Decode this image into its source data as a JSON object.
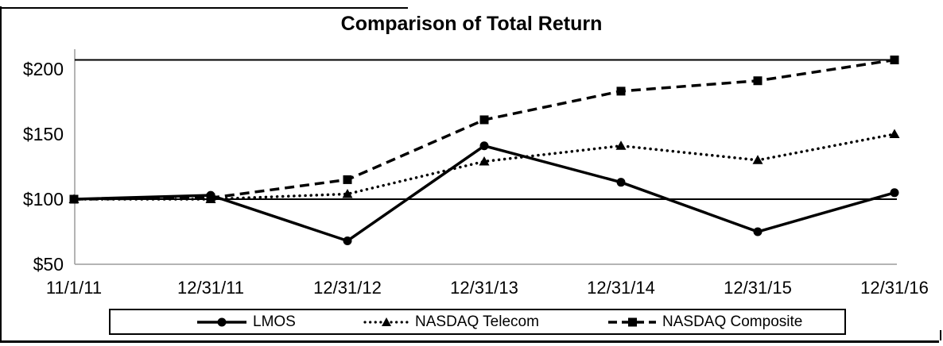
{
  "figure": {
    "title": "Comparison of Total Return"
  },
  "chart_data": {
    "type": "line",
    "title": "Comparison of Total Return",
    "xlabel": "",
    "ylabel": "",
    "x_labels": [
      "11/1/11",
      "12/31/11",
      "12/31/12",
      "12/31/13",
      "12/31/14",
      "12/31/15",
      "12/31/16"
    ],
    "y_ticks": [
      {
        "label": "$200",
        "value": 200
      },
      {
        "label": "$150",
        "value": 150
      },
      {
        "label": "$100",
        "value": 100
      },
      {
        "label": "$50",
        "value": 50
      }
    ],
    "ylim": [
      50,
      207
    ],
    "grid": false,
    "reference_line_values": [
      207,
      100
    ],
    "legend_position": "bottom",
    "series": [
      {
        "name": "LMOS",
        "line": "solid",
        "marker": "circle",
        "color": "#000000",
        "values": [
          100,
          103,
          68,
          141,
          113,
          75,
          105
        ]
      },
      {
        "name": "NASDAQ Telecom",
        "line": "dotted",
        "marker": "triangle",
        "color": "#000000",
        "values": [
          100,
          100,
          104,
          129,
          141,
          130,
          150
        ]
      },
      {
        "name": "NASDAQ Composite",
        "line": "dashed",
        "marker": "square",
        "color": "#000000",
        "values": [
          100,
          101,
          115,
          161,
          183,
          191,
          207
        ]
      }
    ],
    "colors": {
      "series": "#000000",
      "axis": "#9b9b9b"
    }
  }
}
